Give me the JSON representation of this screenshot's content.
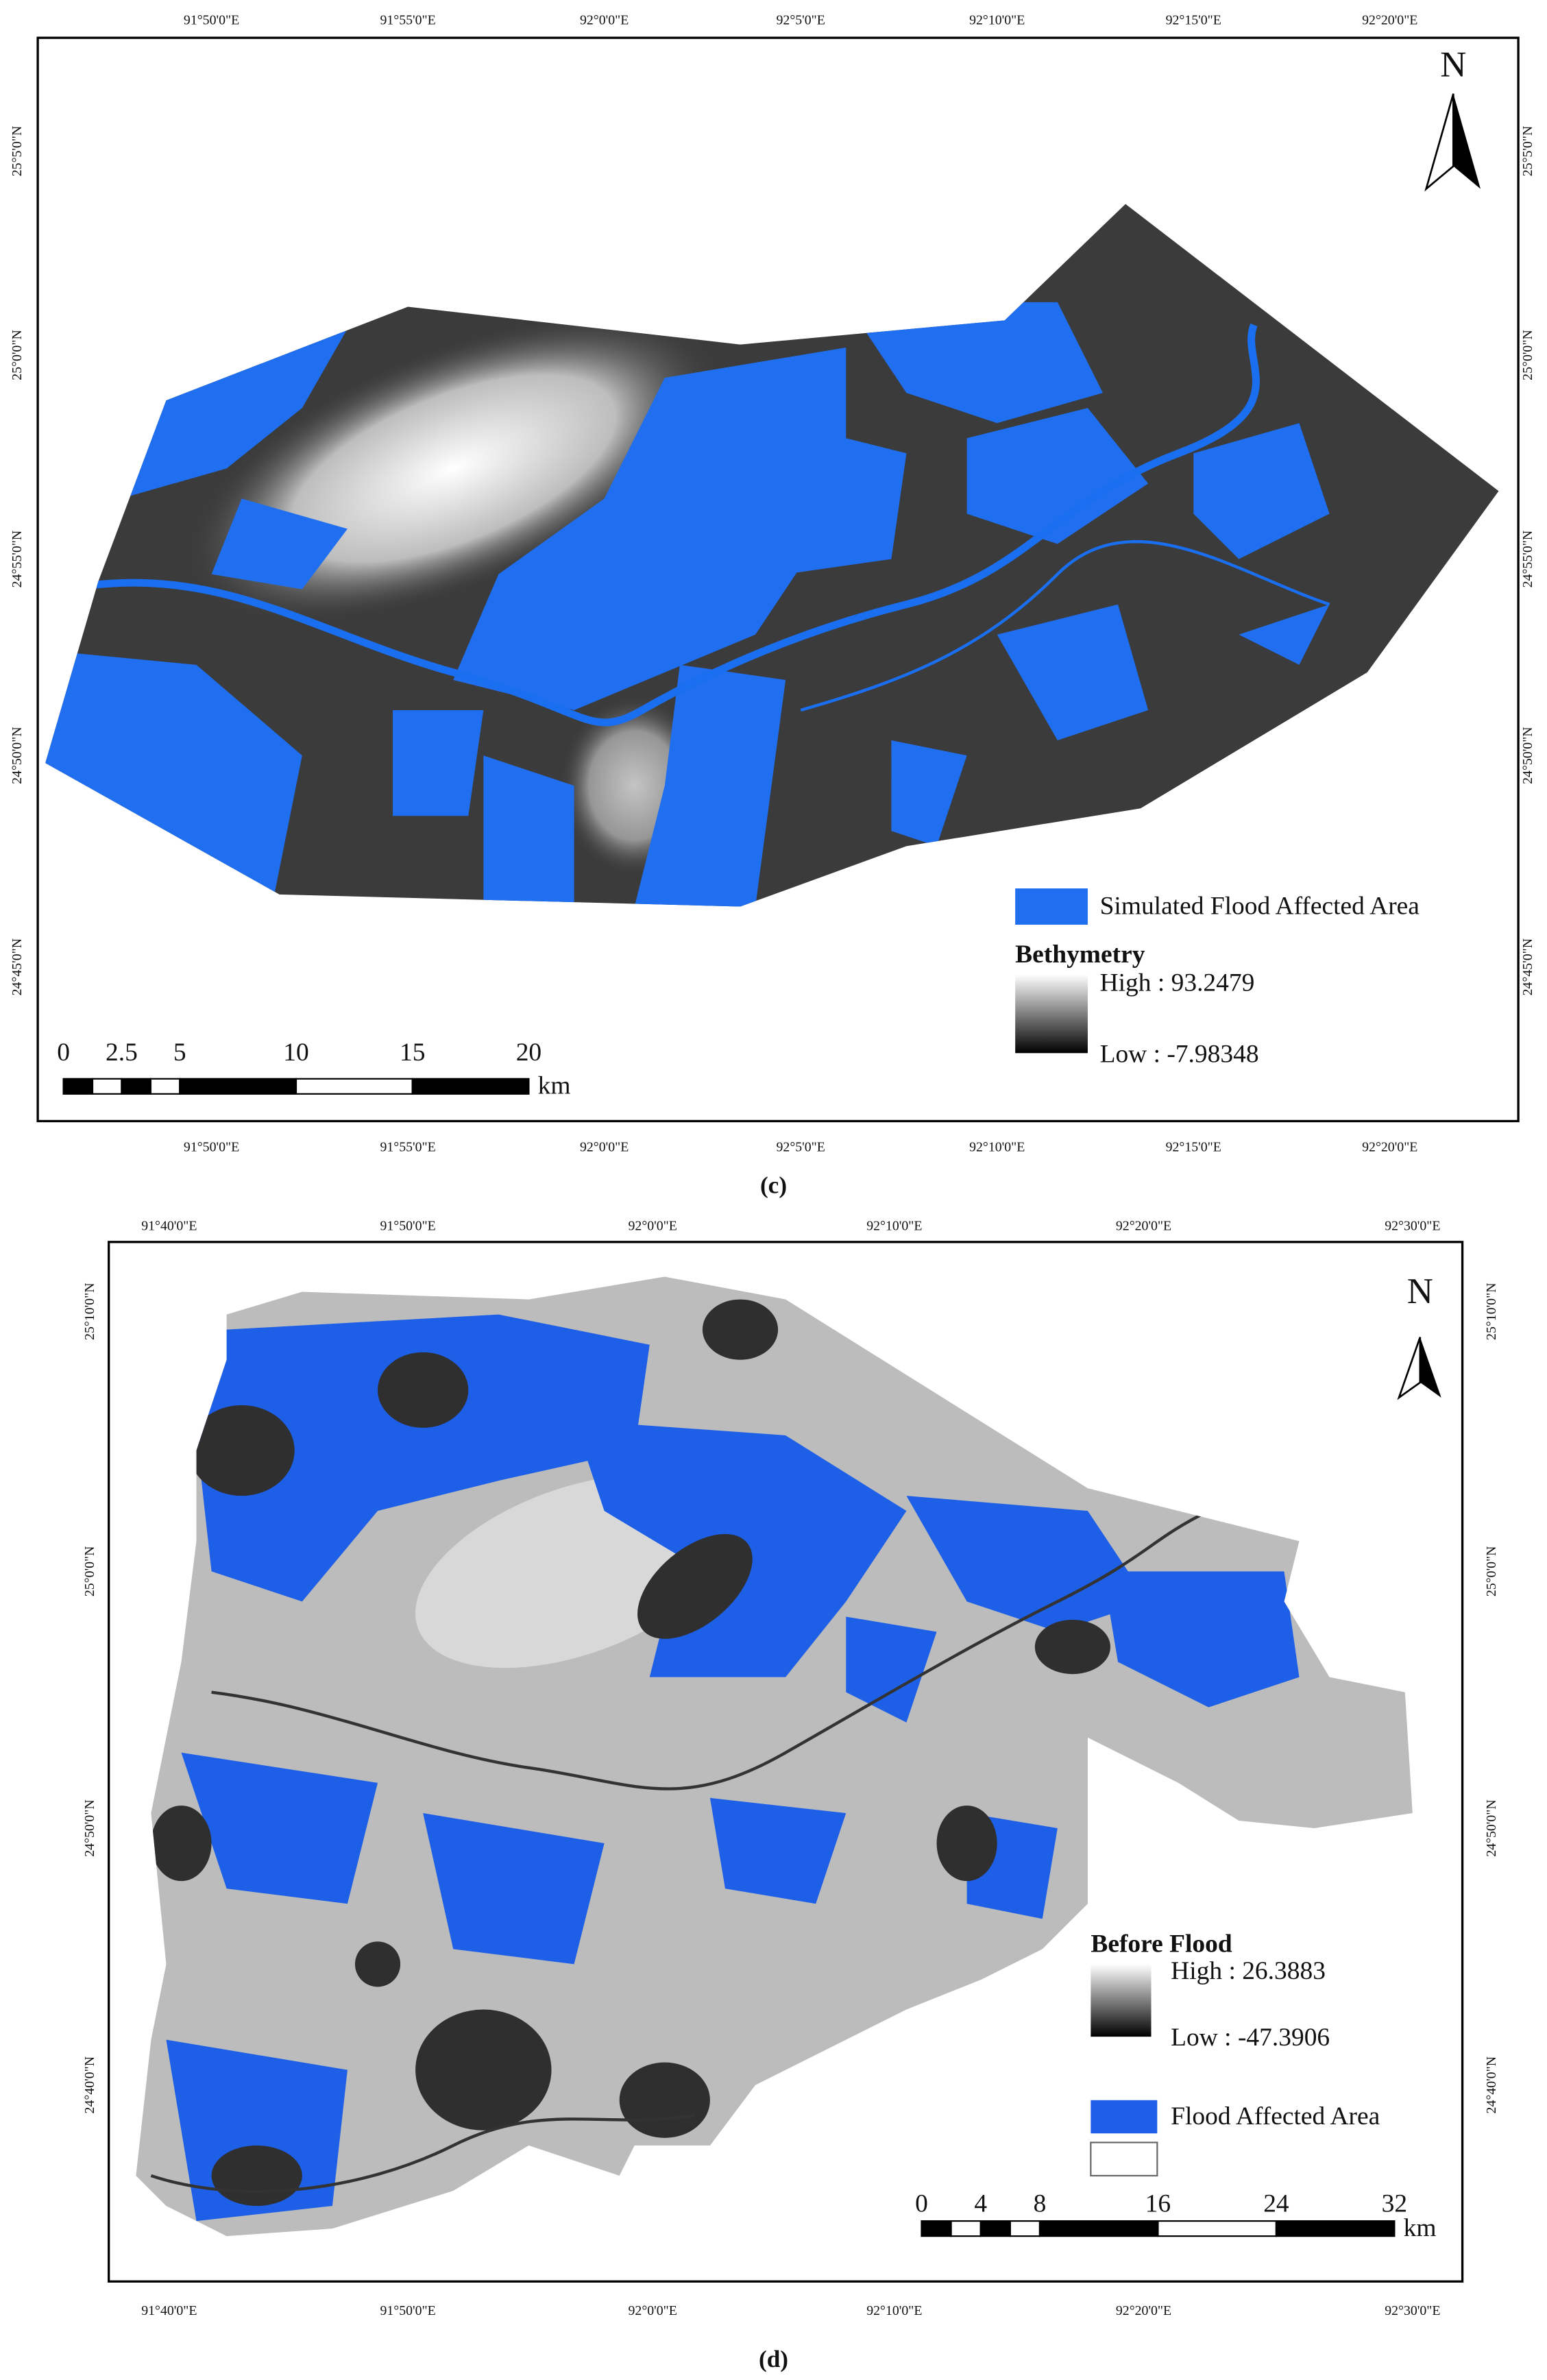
{
  "panels": [
    {
      "caption": "(c)",
      "north": "N",
      "lon_labels": [
        "91°50'0\"E",
        "91°55'0\"E",
        "92°0'0\"E",
        "92°5'0\"E",
        "92°10'0\"E",
        "92°15'0\"E",
        "92°20'0\"E"
      ],
      "lat_labels": [
        "25°5'0\"N",
        "25°0'0\"N",
        "24°55'0\"N",
        "24°50'0\"N",
        "24°45'0\"N"
      ],
      "legend": {
        "flood": "Simulated Flood Affected Area",
        "ramp_title": "Bethymetry",
        "high": "High : 93.2479",
        "low": "Low : -7.98348"
      },
      "scale_bar": {
        "ticks": [
          0,
          2.5,
          5,
          10,
          15,
          20
        ],
        "unit": "km"
      }
    },
    {
      "caption": "(d)",
      "north": "N",
      "lon_labels": [
        "91°40'0\"E",
        "91°50'0\"E",
        "92°0'0\"E",
        "92°10'0\"E",
        "92°20'0\"E",
        "92°30'0\"E"
      ],
      "lat_labels": [
        "25°10'0\"N",
        "25°0'0\"N",
        "24°50'0\"N",
        "24°40'0\"N"
      ],
      "legend": {
        "ramp_title": "Before Flood",
        "high": "High : 26.3883",
        "low": "Low : -47.3906",
        "flood": "Flood Affected Area"
      },
      "scale_bar": {
        "ticks": [
          0,
          4,
          8,
          16,
          24,
          32
        ],
        "unit": "km"
      }
    }
  ]
}
